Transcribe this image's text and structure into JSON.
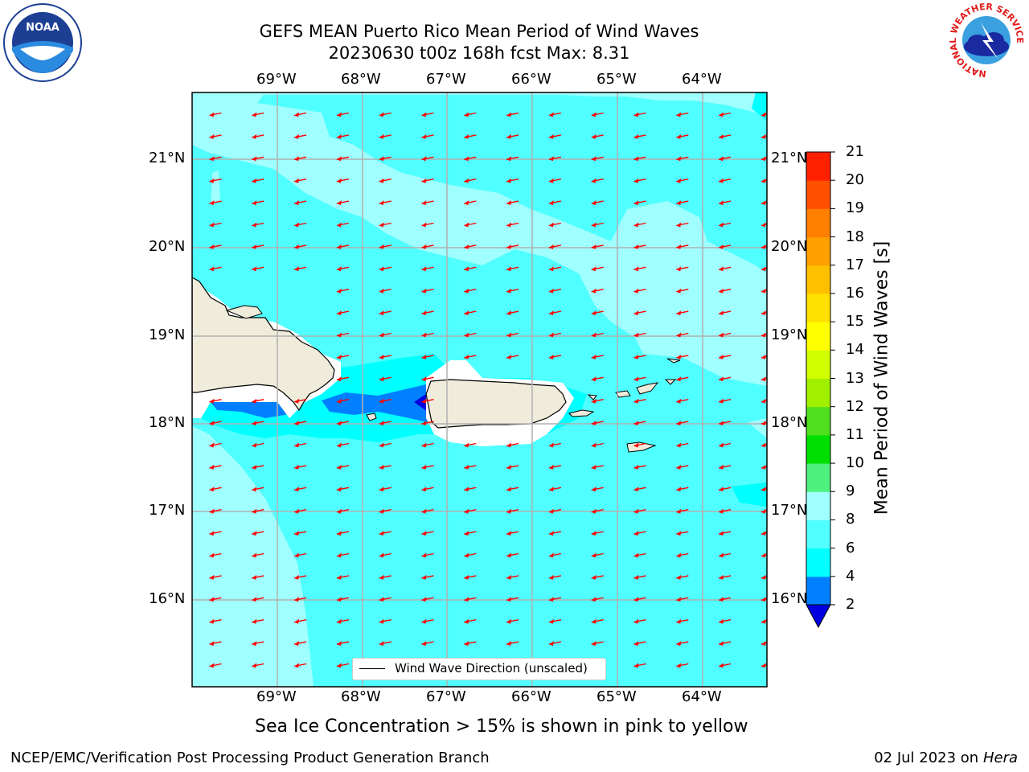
{
  "title": {
    "line1": "GEFS MEAN Puerto Rico Mean Period of Wind Waves",
    "line2": "20230630 t00z 168h fcst   Max: 8.31"
  },
  "map": {
    "lon_labels": [
      "69°W",
      "68°W",
      "67°W",
      "66°W",
      "65°W",
      "64°W"
    ],
    "lat_labels": [
      "21°N",
      "20°N",
      "19°N",
      "18°N",
      "17°N",
      "16°N"
    ],
    "land_color": "#efecdc",
    "arrow_color": "#ff0000",
    "grid_color": "#b0b0b0"
  },
  "legend": {
    "label": "Wind Wave Direction (unscaled)"
  },
  "colorbar": {
    "label": "Mean Period of Wind Waves [s]",
    "ticks": [
      "2",
      "4",
      "6",
      "8",
      "9",
      "10",
      "11",
      "12",
      "13",
      "14",
      "15",
      "16",
      "17",
      "18",
      "19",
      "20",
      "21"
    ],
    "colors": [
      "#0000e0",
      "#0080ff",
      "#00ffff",
      "#50ffff",
      "#a0ffff",
      "#50f080",
      "#00e000",
      "#50e020",
      "#a0f000",
      "#d0ff00",
      "#ffff00",
      "#ffe000",
      "#ffc000",
      "#ffa000",
      "#ff8000",
      "#ff5000",
      "#ff2000",
      "#ff0000"
    ]
  },
  "subtitle": "Sea Ice Concentration > 15% is shown in pink to yellow",
  "footer": {
    "left": "NCEP/EMC/Verification Post Processing Product Generation Branch",
    "right_date": "02 Jul 2023 on ",
    "right_machine": "Hera"
  },
  "logos": {
    "noaa_text": "NOAA",
    "nws_ring": "NATIONAL WEATHER SERVICE"
  }
}
